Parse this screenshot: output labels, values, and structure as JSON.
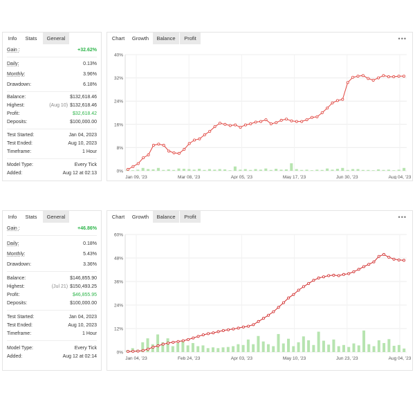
{
  "tabs_left": [
    "Info",
    "Stats",
    "General"
  ],
  "tabs_right": [
    "Chart",
    "Growth",
    "Balance",
    "Profit"
  ],
  "more_icon": "more-dots-icon",
  "panels": [
    {
      "info": {
        "gain_label": "Gain :",
        "gain_value": "+32.62%",
        "daily_label": "Daily:",
        "daily_value": "0.13%",
        "monthly_label": "Monthly:",
        "monthly_value": "3.96%",
        "drawdown_label": "Drawdown:",
        "drawdown_value": "6.18%",
        "balance_label": "Balance:",
        "balance_value": "$132,618.46",
        "highest_label": "Highest:",
        "highest_note": "(Aug 10)",
        "highest_value": "$132,618.46",
        "profit_label": "Profit:",
        "profit_value": "$32,618.42",
        "deposits_label": "Deposits:",
        "deposits_value": "$100,000.00",
        "test_started_label": "Test Started:",
        "test_started_value": "Jan 04, 2023",
        "test_ended_label": "Test Ended:",
        "test_ended_value": "Aug 10, 2023",
        "timeframe_label": "Timeframe:",
        "timeframe_value": "1 Hour",
        "model_type_label": "Model Type:",
        "model_type_value": "Every Tick",
        "added_label": "Added:",
        "added_value": "Aug 12 at 02:13"
      },
      "chart_data": {
        "type": "line",
        "series_color": "#e0443e",
        "bar_color": "#b7e4b0",
        "ylim": [
          0,
          40
        ],
        "y_ticks": [
          "0%",
          "8%",
          "16%",
          "24%",
          "32%",
          "40%"
        ],
        "x_ticks": [
          "Jan 09, '23",
          "Mar 08, '23",
          "Apr 05, '23",
          "May 17, '23",
          "Jun 30, '23",
          "Aug 04, '23"
        ],
        "line_values": [
          0.5,
          1.5,
          2.5,
          4.5,
          5.5,
          8.8,
          9.2,
          8.8,
          6.8,
          6.2,
          6.0,
          7.4,
          9.4,
          10.6,
          11.0,
          12.4,
          13.6,
          15.2,
          16.4,
          16.0,
          15.6,
          15.8,
          15.0,
          15.8,
          16.2,
          16.8,
          17.0,
          17.6,
          16.2,
          16.6,
          17.4,
          17.8,
          17.2,
          17.0,
          17.0,
          17.6,
          18.4,
          18.6,
          20.0,
          21.6,
          23.4,
          24.2,
          24.6,
          30.4,
          32.2,
          32.6,
          32.8,
          31.8,
          31.2,
          32.0,
          32.8,
          32.4,
          32.4,
          32.6,
          32.6
        ],
        "bar_values": [
          0.6,
          0.2,
          0.4,
          1.0,
          0.6,
          0.5,
          1.0,
          0.3,
          0.5,
          0.3,
          0.8,
          0.7,
          0.6,
          0.4,
          0.7,
          0.3,
          0.6,
          0.4,
          0.6,
          0.5,
          0.2,
          1.5,
          0.4,
          0.6,
          0.3,
          0.6,
          0.4,
          0.8,
          0.3,
          0.7,
          0.4,
          0.5,
          2.6,
          0.6,
          0.3,
          0.4,
          0.2,
          0.4,
          0.3,
          0.8,
          0.4,
          0.7,
          1.0,
          0.3,
          0.6,
          0.6,
          0.3,
          0.3,
          0.2,
          0.5,
          0.3,
          0.4,
          0.2,
          0.4,
          1.0
        ]
      }
    },
    {
      "info": {
        "gain_label": "Gain :",
        "gain_value": "+46.86%",
        "daily_label": "Daily:",
        "daily_value": "0.18%",
        "monthly_label": "Monthly:",
        "monthly_value": "5.43%",
        "drawdown_label": "Drawdown:",
        "drawdown_value": "3.36%",
        "balance_label": "Balance:",
        "balance_value": "$146,855.90",
        "highest_label": "Highest:",
        "highest_note": "(Jul 21)",
        "highest_value": "$150,493.25",
        "profit_label": "Profit:",
        "profit_value": "$46,855.95",
        "deposits_label": "Deposits:",
        "deposits_value": "$100,000.00",
        "test_started_label": "Test Started:",
        "test_started_value": "Jan 04, 2023",
        "test_ended_label": "Test Ended:",
        "test_ended_value": "Aug 10, 2023",
        "timeframe_label": "Timeframe:",
        "timeframe_value": "1 Hour",
        "model_type_label": "Model Type:",
        "model_type_value": "Every Tick",
        "added_label": "Added:",
        "added_value": "Aug 12 at 02:14"
      },
      "chart_data": {
        "type": "line",
        "series_color": "#d12a2a",
        "bar_color": "#b7e4b0",
        "ylim": [
          0,
          60
        ],
        "y_ticks": [
          "0%",
          "12%",
          "24%",
          "36%",
          "48%",
          "60%"
        ],
        "x_ticks": [
          "Jan 04, '23",
          "Feb 24, '23",
          "Apr 03, '23",
          "May 10, '23",
          "Jun 23, '23",
          "Aug 04, '23"
        ],
        "line_values": [
          0.3,
          0.4,
          0.5,
          0.8,
          1.5,
          2.5,
          3.2,
          4.0,
          4.6,
          5.0,
          5.4,
          5.8,
          6.4,
          7.2,
          8.0,
          8.8,
          9.4,
          9.8,
          10.4,
          11.0,
          11.4,
          11.8,
          12.2,
          12.8,
          13.2,
          14.0,
          15.6,
          17.2,
          18.8,
          20.6,
          22.8,
          25.2,
          27.6,
          29.4,
          31.6,
          33.4,
          35.0,
          36.6,
          37.8,
          38.4,
          39.0,
          39.2,
          39.0,
          39.6,
          40.0,
          41.0,
          42.2,
          43.6,
          44.8,
          46.0,
          48.8,
          49.8,
          48.4,
          47.4,
          47.0,
          46.8
        ],
        "bar_values": [
          1.0,
          2.0,
          1.2,
          5.0,
          7.0,
          4.0,
          9.0,
          5.0,
          7.0,
          3.0,
          4.6,
          6.0,
          3.4,
          4.6,
          3.0,
          3.4,
          2.0,
          2.4,
          2.0,
          2.4,
          2.6,
          3.0,
          4.0,
          3.6,
          6.4,
          4.0,
          8.2,
          5.4,
          4.0,
          3.0,
          9.2,
          4.4,
          6.8,
          3.0,
          5.0,
          8.0,
          6.0,
          3.6,
          10.4,
          5.8,
          3.8,
          6.4,
          3.0,
          3.6,
          2.6,
          4.4,
          3.4,
          11.0,
          4.0,
          3.0,
          6.0,
          4.6,
          6.6,
          3.2,
          3.6,
          1.8
        ]
      }
    }
  ]
}
